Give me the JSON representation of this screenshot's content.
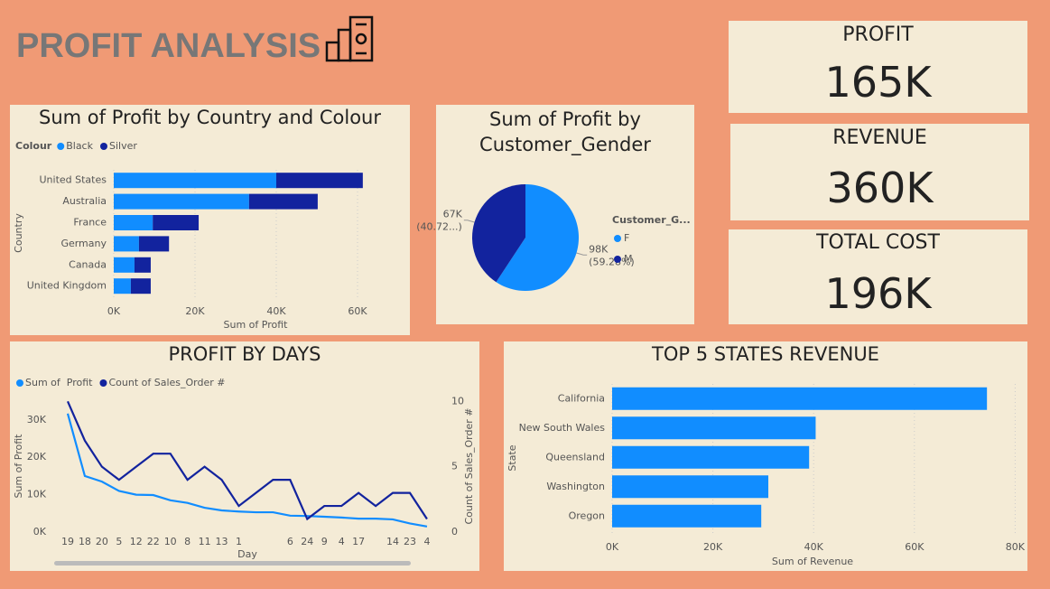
{
  "header": {
    "title": "PROFIT ANALYSIS"
  },
  "kpis": [
    {
      "label": "PROFIT",
      "value": "165K"
    },
    {
      "label": "REVENUE",
      "value": "360K"
    },
    {
      "label": "TOTAL COST",
      "value": "196K"
    }
  ],
  "chart_data": [
    {
      "type": "bar",
      "orientation": "horizontal",
      "stacked": true,
      "title": "Sum of Profit by Country and Colour",
      "legend_title": "Colour",
      "x_label": "Sum of Profit",
      "y_label": "Country",
      "categories": [
        "United States",
        "Australia",
        "France",
        "Germany",
        "Canada",
        "United Kingdom"
      ],
      "series": [
        {
          "name": "Black",
          "color": "#118dff",
          "values": [
            40000,
            33300,
            9600,
            6200,
            5100,
            4200
          ]
        },
        {
          "name": "Silver",
          "color": "#12239e",
          "values": [
            21300,
            16900,
            11300,
            7400,
            4000,
            4900
          ]
        }
      ],
      "xlim": [
        0,
        70000
      ],
      "xticks": [
        {
          "value": 0,
          "label": "0K"
        },
        {
          "value": 20000,
          "label": "20K"
        },
        {
          "value": 40000,
          "label": "40K"
        },
        {
          "value": 60000,
          "label": "60K"
        }
      ],
      "grid": true
    },
    {
      "type": "pie",
      "title": "Sum of Profit by Customer_Gender",
      "legend_title": "Customer_G...",
      "categories": [
        "F",
        "M"
      ],
      "colors": [
        "#118dff",
        "#12239e"
      ],
      "values": [
        97600,
        67040
      ],
      "value_labels": [
        [
          "98K",
          "(59.28%)"
        ],
        [
          "67K",
          "(40.72...)"
        ]
      ]
    },
    {
      "type": "line",
      "title": "PROFIT BY DAYS",
      "x_label": "Day",
      "y_label": "Sum of Profit",
      "y2_label": "Count of Sales_Order #",
      "categories": [
        "19",
        "18",
        "20",
        "5",
        "12",
        "22",
        "10",
        "8",
        "11",
        "13",
        "1",
        null,
        null,
        "6",
        "24",
        "9",
        "4",
        "17",
        null,
        "14",
        "23",
        "4"
      ],
      "series": [
        {
          "name": "Sum of  Profit",
          "color": "#118dff",
          "values": [
            31700,
            15000,
            13500,
            11000,
            10000,
            9900,
            8500,
            7800,
            6500,
            5800,
            5500,
            5300,
            5300,
            4400,
            4300,
            4100,
            3900,
            3600,
            3600,
            3400,
            2300,
            1500
          ]
        },
        {
          "name": "Count of Sales_Order #",
          "color": "#12239e",
          "axis": "y2",
          "values": [
            10,
            7,
            5,
            4,
            5,
            6,
            6,
            4,
            5,
            4,
            2,
            3,
            4,
            4,
            1,
            2,
            2,
            3,
            2,
            3,
            3,
            1
          ]
        }
      ],
      "ylim": [
        0,
        36000
      ],
      "yticks": [
        {
          "value": 0,
          "label": "0K"
        },
        {
          "value": 10000,
          "label": "10K"
        },
        {
          "value": 20000,
          "label": "20K"
        },
        {
          "value": 30000,
          "label": "30K"
        }
      ],
      "y2lim": [
        0,
        10.3
      ],
      "y2ticks": [
        0,
        5,
        10
      ]
    },
    {
      "type": "bar",
      "orientation": "horizontal",
      "stacked": false,
      "title": "TOP 5 STATES REVENUE",
      "x_label": "Sum of Revenue",
      "y_label": "State",
      "categories": [
        "California",
        "New South Wales",
        "Queensland",
        "Washington",
        "Oregon"
      ],
      "color": "#118dff",
      "values": [
        74400,
        40400,
        39100,
        31000,
        29600
      ],
      "xlim": [
        0,
        81000
      ],
      "xticks": [
        {
          "value": 0,
          "label": "0K"
        },
        {
          "value": 20000,
          "label": "20K"
        },
        {
          "value": 40000,
          "label": "40K"
        },
        {
          "value": 60000,
          "label": "60K"
        },
        {
          "value": 80000,
          "label": "80K"
        }
      ],
      "grid": true
    }
  ]
}
